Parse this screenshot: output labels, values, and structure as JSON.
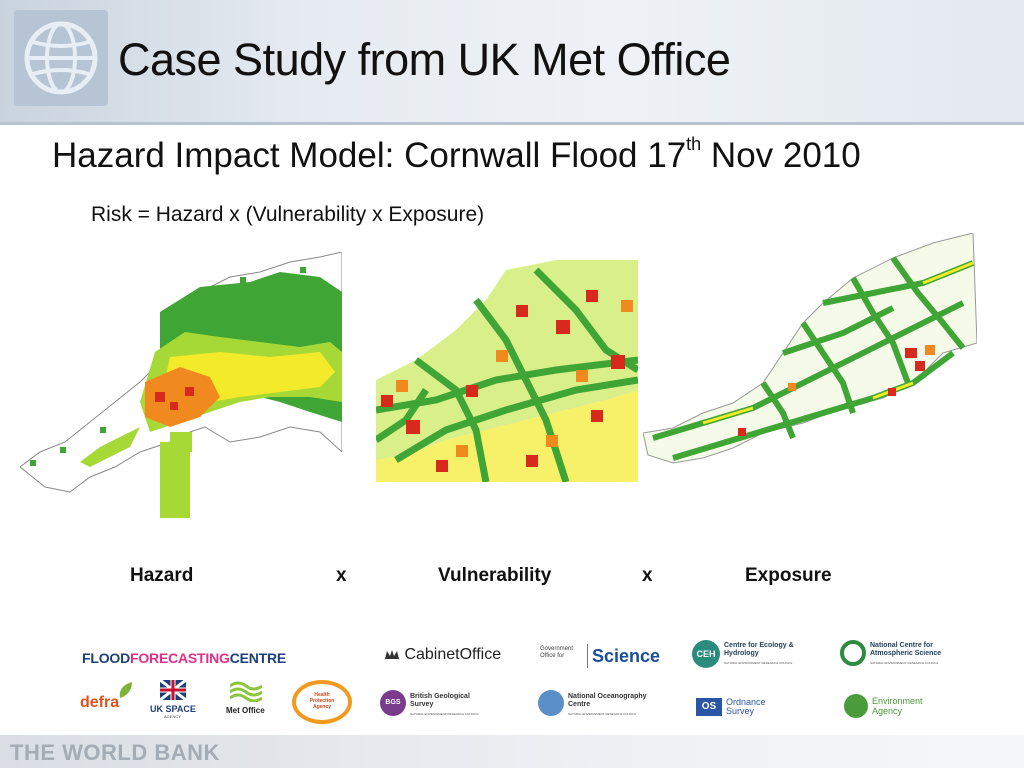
{
  "header": {
    "title": "Case Study from UK Met Office"
  },
  "subtitle": {
    "main": "Hazard Impact Model: Cornwall Flood 17",
    "sup": "th",
    "tail": " Nov 2010"
  },
  "formula": "Risk = Hazard x (Vulnerability x Exposure)",
  "labels": {
    "hazard": "Hazard",
    "x1": "x",
    "vulnerability": "Vulnerability",
    "x2": "x",
    "exposure": "Exposure"
  },
  "logos": {
    "ffc_part1": "FLOOD",
    "ffc_part2": "FORECASTING",
    "ffc_part3": "CENTRE",
    "cabinet": "CabinetOffice",
    "gos_small": "Government Office for",
    "gos_big": "Science",
    "ceh_badge": "CEH",
    "ceh_name": "Centre for Ecology & Hydrology",
    "ceh_sub": "NATURAL ENVIRONMENT RESEARCH COUNCIL",
    "ncas_name": "National Centre for Atmospheric Science",
    "ncas_sub": "NATURAL ENVIRONMENT RESEARCH COUNCIL",
    "defra": "defra",
    "ukspace": "UK SPACE",
    "ukspace_sub": "AGENCY",
    "metoffice": "Met Office",
    "hpa": "Health Protection Agency",
    "bgs_badge": "BGS",
    "bgs_name": "British Geological Survey",
    "bgs_sub": "NATURAL ENVIRONMENT RESEARCH COUNCIL",
    "noc_name": "National Oceanography Centre",
    "noc_sub": "NATURAL ENVIRONMENT RESEARCH COUNCIL",
    "os_badge": "OS",
    "os_name": "Ordnance Survey",
    "ea_name": "Environment Agency"
  },
  "footer": "THE WORLD BANK",
  "colors": {
    "green": "#3fa535",
    "lightgreen": "#a6d936",
    "yellow": "#f3ea2a",
    "orange": "#f08a1e",
    "red": "#d72a1c"
  }
}
